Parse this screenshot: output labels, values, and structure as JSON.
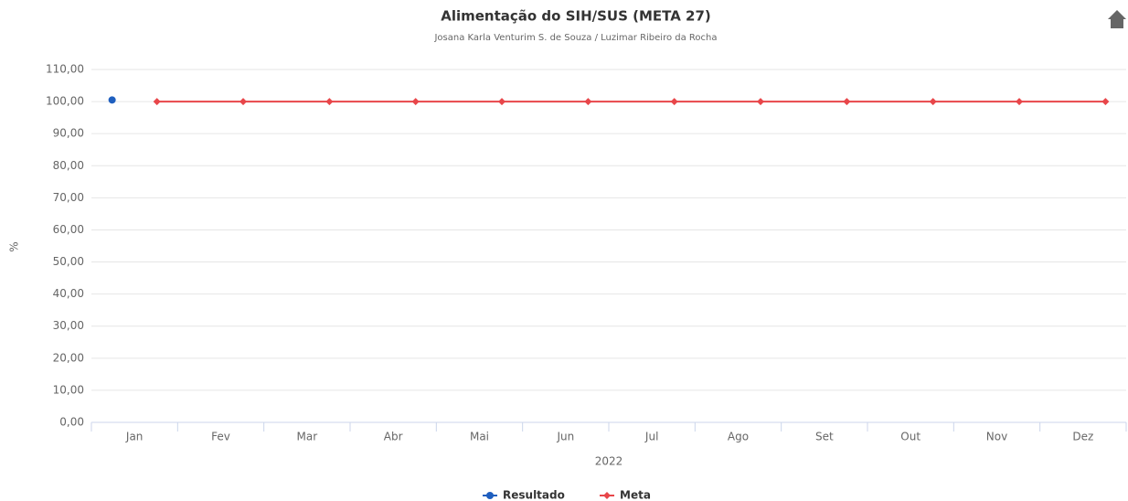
{
  "chart_data": {
    "type": "line",
    "title": "Alimentação do SIH/SUS (META 27)",
    "subtitle": "Josana Karla Venturim S. de Souza / Luzimar Ribeiro da Rocha",
    "y_label": "%",
    "x_label": "2022",
    "categories": [
      "Jan",
      "Fev",
      "Mar",
      "Abr",
      "Mai",
      "Jun",
      "Jul",
      "Ago",
      "Set",
      "Out",
      "Nov",
      "Dez"
    ],
    "series": [
      {
        "name": "Resultado",
        "color": "#1f5fbf",
        "values": [
          100.5,
          null,
          null,
          null,
          null,
          null,
          null,
          null,
          null,
          null,
          null,
          null
        ]
      },
      {
        "name": "Meta",
        "color": "#e8464a",
        "values": [
          100,
          100,
          100,
          100,
          100,
          100,
          100,
          100,
          100,
          100,
          100,
          100
        ]
      }
    ],
    "ylim": [
      0,
      110
    ],
    "yticks": [
      {
        "value": 0,
        "label": "0,00"
      },
      {
        "value": 10,
        "label": "10,00"
      },
      {
        "value": 20,
        "label": "20,00"
      },
      {
        "value": 30,
        "label": "30,00"
      },
      {
        "value": 40,
        "label": "40,00"
      },
      {
        "value": 50,
        "label": "50,00"
      },
      {
        "value": 60,
        "label": "60,00"
      },
      {
        "value": 70,
        "label": "70,00"
      },
      {
        "value": 80,
        "label": "80,00"
      },
      {
        "value": 90,
        "label": "90,00"
      },
      {
        "value": 100,
        "label": "100,00"
      },
      {
        "value": 110,
        "label": "110,00"
      }
    ],
    "grid": true,
    "legend": "bottom"
  }
}
